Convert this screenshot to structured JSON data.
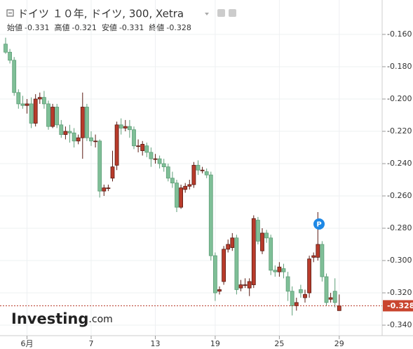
{
  "chart_data": {
    "type": "candlestick",
    "title": "ドイツ １０年, ドイツ, 300, Xetra",
    "ohlc_header": [
      {
        "label": "始値",
        "value": "-0.331"
      },
      {
        "label": "高値",
        "value": "-0.321"
      },
      {
        "label": "安値",
        "value": "-0.331"
      },
      {
        "label": "終値",
        "value": "-0.328"
      }
    ],
    "categories": [
      null,
      null,
      null,
      null,
      null,
      "6月",
      null,
      null,
      null,
      null,
      null,
      null,
      null,
      null,
      null,
      null,
      null,
      null,
      null,
      null,
      "7",
      null,
      null,
      null,
      null,
      null,
      null,
      null,
      null,
      null,
      null,
      null,
      null,
      null,
      null,
      "13",
      null,
      null,
      null,
      null,
      null,
      null,
      null,
      null,
      null,
      null,
      null,
      null,
      null,
      "19",
      null,
      null,
      null,
      null,
      null,
      null,
      null,
      null,
      null,
      null,
      null,
      null,
      null,
      null,
      "25",
      null,
      null,
      null,
      null,
      null,
      null,
      null,
      null,
      null,
      null,
      null,
      null,
      null,
      "29"
    ],
    "open": [
      -0.166,
      -0.171,
      -0.176,
      -0.196,
      -0.203,
      -0.204,
      -0.203,
      -0.215,
      -0.2,
      -0.199,
      -0.203,
      -0.217,
      -0.205,
      -0.216,
      -0.222,
      -0.22,
      -0.221,
      -0.226,
      -0.224,
      -0.205,
      -0.224,
      -0.226,
      -0.226,
      -0.257,
      -0.255,
      -0.249,
      -0.241,
      -0.216,
      -0.218,
      -0.217,
      -0.219,
      -0.229,
      -0.232,
      -0.229,
      -0.233,
      -0.237,
      -0.237,
      -0.24,
      -0.242,
      -0.249,
      -0.252,
      -0.267,
      -0.256,
      -0.254,
      -0.253,
      -0.241,
      -0.244,
      -0.245,
      -0.247,
      -0.297,
      -0.319,
      -0.313,
      -0.293,
      -0.292,
      -0.286,
      -0.317,
      -0.315,
      -0.317,
      -0.315,
      -0.275,
      -0.294,
      -0.283,
      -0.286,
      -0.306,
      -0.307,
      -0.305,
      -0.31,
      -0.319,
      -0.328,
      -0.318,
      -0.323,
      -0.32,
      -0.298,
      -0.298,
      -0.29,
      -0.31,
      -0.324,
      -0.319,
      -0.331
    ],
    "high": [
      -0.162,
      -0.169,
      -0.174,
      -0.194,
      -0.198,
      -0.2,
      -0.199,
      -0.197,
      -0.196,
      -0.195,
      -0.201,
      -0.203,
      -0.203,
      -0.213,
      -0.217,
      -0.216,
      -0.218,
      -0.222,
      -0.196,
      -0.203,
      -0.22,
      -0.222,
      -0.225,
      -0.253,
      -0.253,
      -0.232,
      -0.214,
      -0.212,
      -0.213,
      -0.213,
      -0.217,
      -0.225,
      -0.226,
      -0.227,
      -0.23,
      -0.234,
      -0.235,
      -0.237,
      -0.24,
      -0.245,
      -0.25,
      -0.253,
      -0.252,
      -0.25,
      -0.239,
      -0.238,
      -0.242,
      -0.243,
      -0.245,
      -0.295,
      -0.316,
      -0.291,
      -0.287,
      -0.283,
      -0.284,
      -0.312,
      -0.311,
      -0.311,
      -0.272,
      -0.273,
      -0.28,
      -0.281,
      -0.284,
      -0.303,
      -0.301,
      -0.302,
      -0.307,
      -0.316,
      -0.323,
      -0.315,
      -0.318,
      -0.297,
      -0.295,
      -0.27,
      -0.288,
      -0.308,
      -0.32,
      -0.311,
      -0.321
    ],
    "low": [
      -0.172,
      -0.178,
      -0.198,
      -0.206,
      -0.206,
      -0.209,
      -0.218,
      -0.217,
      -0.203,
      -0.206,
      -0.219,
      -0.218,
      -0.218,
      -0.224,
      -0.225,
      -0.227,
      -0.23,
      -0.228,
      -0.237,
      -0.226,
      -0.229,
      -0.23,
      -0.261,
      -0.26,
      -0.257,
      -0.251,
      -0.244,
      -0.222,
      -0.22,
      -0.224,
      -0.231,
      -0.233,
      -0.235,
      -0.236,
      -0.242,
      -0.24,
      -0.243,
      -0.245,
      -0.251,
      -0.255,
      -0.27,
      -0.268,
      -0.258,
      -0.256,
      -0.255,
      -0.247,
      -0.246,
      -0.249,
      -0.3,
      -0.325,
      -0.321,
      -0.315,
      -0.295,
      -0.294,
      -0.321,
      -0.319,
      -0.317,
      -0.322,
      -0.317,
      -0.29,
      -0.296,
      -0.289,
      -0.309,
      -0.31,
      -0.31,
      -0.311,
      -0.325,
      -0.334,
      -0.331,
      -0.323,
      -0.326,
      -0.323,
      -0.301,
      -0.3,
      -0.313,
      -0.328,
      -0.326,
      -0.329,
      -0.331
    ],
    "close": [
      -0.171,
      -0.176,
      -0.196,
      -0.203,
      -0.204,
      -0.203,
      -0.215,
      -0.2,
      -0.199,
      -0.203,
      -0.217,
      -0.205,
      -0.216,
      -0.222,
      -0.22,
      -0.221,
      -0.226,
      -0.224,
      -0.205,
      -0.224,
      -0.226,
      -0.226,
      -0.257,
      -0.255,
      -0.255,
      -0.242,
      -0.216,
      -0.218,
      -0.217,
      -0.219,
      -0.229,
      -0.229,
      -0.228,
      -0.233,
      -0.237,
      -0.237,
      -0.24,
      -0.242,
      -0.249,
      -0.252,
      -0.267,
      -0.255,
      -0.254,
      -0.253,
      -0.241,
      -0.244,
      -0.244,
      -0.247,
      -0.297,
      -0.32,
      -0.318,
      -0.293,
      -0.29,
      -0.286,
      -0.318,
      -0.315,
      -0.315,
      -0.313,
      -0.274,
      -0.288,
      -0.283,
      -0.286,
      -0.306,
      -0.307,
      -0.304,
      -0.307,
      -0.319,
      -0.328,
      -0.326,
      -0.32,
      -0.321,
      -0.299,
      -0.297,
      -0.29,
      -0.31,
      -0.326,
      -0.323,
      -0.326,
      -0.328
    ],
    "up_color": "#b83b2b",
    "down_color": "#7fbf97",
    "ylim": [
      -0.3465,
      -0.1387
    ],
    "yticks": [
      {
        "value": -0.16,
        "label": "-0.160"
      },
      {
        "value": -0.18,
        "label": "-0.180"
      },
      {
        "value": -0.2,
        "label": "-0.200"
      },
      {
        "value": -0.22,
        "label": "-0.220"
      },
      {
        "value": -0.24,
        "label": "-0.240"
      },
      {
        "value": -0.26,
        "label": "-0.260"
      },
      {
        "value": -0.28,
        "label": "-0.280"
      },
      {
        "value": -0.3,
        "label": "-0.300"
      },
      {
        "value": -0.32,
        "label": "-0.320"
      },
      {
        "value": -0.34,
        "label": "-0.340"
      }
    ],
    "last_price": {
      "value": -0.328,
      "label": "-0.328"
    },
    "event_marker": "P",
    "logo": "Investing",
    "logo_suffix": ".com",
    "grid": true
  }
}
